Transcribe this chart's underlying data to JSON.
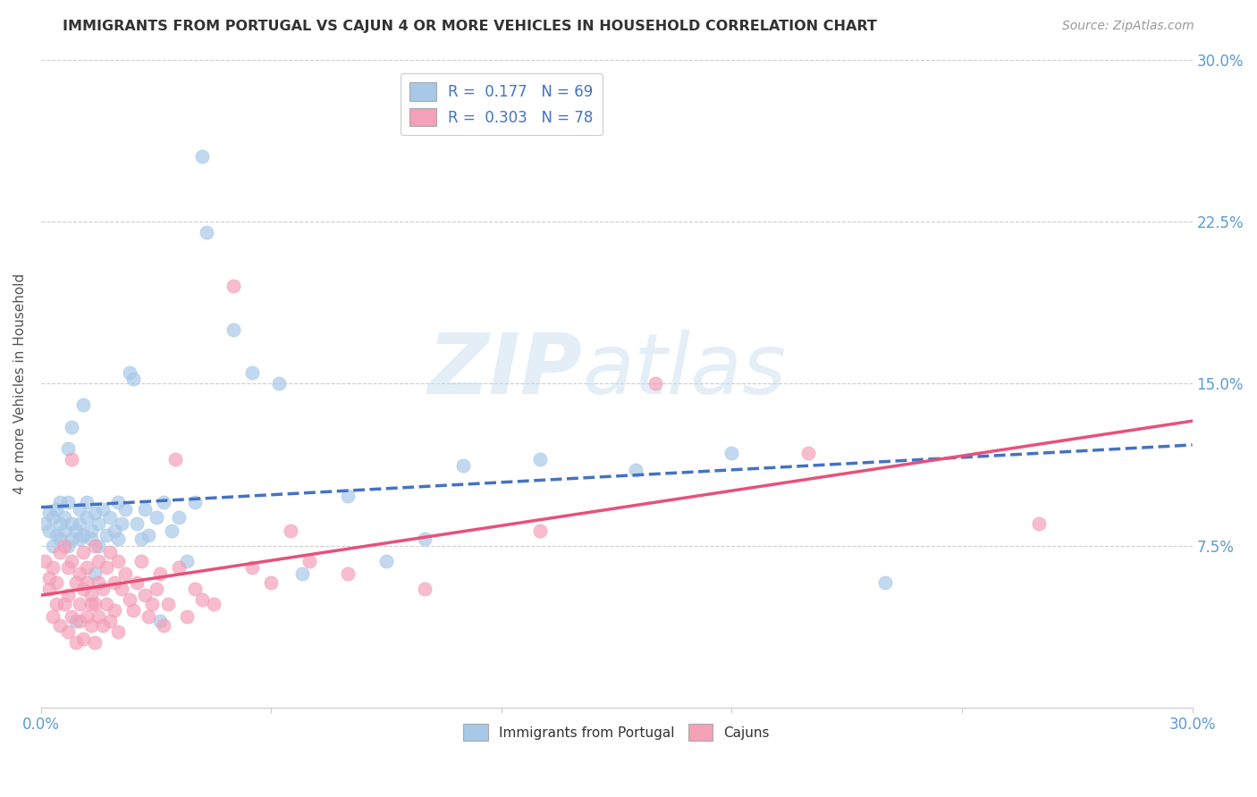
{
  "title": "IMMIGRANTS FROM PORTUGAL VS CAJUN 4 OR MORE VEHICLES IN HOUSEHOLD CORRELATION CHART",
  "source": "Source: ZipAtlas.com",
  "ylabel": "4 or more Vehicles in Household",
  "xlim": [
    0.0,
    0.3
  ],
  "ylim": [
    0.0,
    0.3
  ],
  "yticks": [
    0.0,
    0.075,
    0.15,
    0.225,
    0.3
  ],
  "ytick_labels": [
    "",
    "7.5%",
    "15.0%",
    "22.5%",
    "30.0%"
  ],
  "bottom_legend": [
    "Immigrants from Portugal",
    "Cajuns"
  ],
  "portugal_color": "#a8c8e8",
  "cajun_color": "#f4a0b8",
  "portugal_line_color": "#4472c4",
  "cajun_line_color": "#e8507a",
  "portugal_scatter": [
    [
      0.001,
      0.085
    ],
    [
      0.002,
      0.09
    ],
    [
      0.002,
      0.082
    ],
    [
      0.003,
      0.088
    ],
    [
      0.003,
      0.075
    ],
    [
      0.004,
      0.092
    ],
    [
      0.004,
      0.08
    ],
    [
      0.005,
      0.095
    ],
    [
      0.005,
      0.085
    ],
    [
      0.005,
      0.078
    ],
    [
      0.006,
      0.088
    ],
    [
      0.006,
      0.082
    ],
    [
      0.007,
      0.095
    ],
    [
      0.007,
      0.075
    ],
    [
      0.007,
      0.12
    ],
    [
      0.008,
      0.085
    ],
    [
      0.008,
      0.078
    ],
    [
      0.008,
      0.13
    ],
    [
      0.009,
      0.082
    ],
    [
      0.009,
      0.04
    ],
    [
      0.01,
      0.085
    ],
    [
      0.01,
      0.078
    ],
    [
      0.01,
      0.092
    ],
    [
      0.011,
      0.08
    ],
    [
      0.011,
      0.14
    ],
    [
      0.012,
      0.088
    ],
    [
      0.012,
      0.095
    ],
    [
      0.013,
      0.082
    ],
    [
      0.013,
      0.078
    ],
    [
      0.014,
      0.09
    ],
    [
      0.014,
      0.062
    ],
    [
      0.015,
      0.085
    ],
    [
      0.015,
      0.075
    ],
    [
      0.016,
      0.092
    ],
    [
      0.017,
      0.08
    ],
    [
      0.018,
      0.088
    ],
    [
      0.019,
      0.082
    ],
    [
      0.02,
      0.095
    ],
    [
      0.02,
      0.078
    ],
    [
      0.021,
      0.085
    ],
    [
      0.022,
      0.092
    ],
    [
      0.023,
      0.155
    ],
    [
      0.024,
      0.152
    ],
    [
      0.025,
      0.085
    ],
    [
      0.026,
      0.078
    ],
    [
      0.027,
      0.092
    ],
    [
      0.028,
      0.08
    ],
    [
      0.03,
      0.088
    ],
    [
      0.031,
      0.04
    ],
    [
      0.032,
      0.095
    ],
    [
      0.034,
      0.082
    ],
    [
      0.036,
      0.088
    ],
    [
      0.038,
      0.068
    ],
    [
      0.04,
      0.095
    ],
    [
      0.042,
      0.255
    ],
    [
      0.043,
      0.22
    ],
    [
      0.05,
      0.175
    ],
    [
      0.055,
      0.155
    ],
    [
      0.062,
      0.15
    ],
    [
      0.068,
      0.062
    ],
    [
      0.08,
      0.098
    ],
    [
      0.09,
      0.068
    ],
    [
      0.1,
      0.078
    ],
    [
      0.11,
      0.112
    ],
    [
      0.13,
      0.115
    ],
    [
      0.155,
      0.11
    ],
    [
      0.18,
      0.118
    ],
    [
      0.22,
      0.058
    ]
  ],
  "cajun_scatter": [
    [
      0.001,
      0.068
    ],
    [
      0.002,
      0.06
    ],
    [
      0.002,
      0.055
    ],
    [
      0.003,
      0.065
    ],
    [
      0.003,
      0.042
    ],
    [
      0.004,
      0.058
    ],
    [
      0.004,
      0.048
    ],
    [
      0.005,
      0.072
    ],
    [
      0.005,
      0.038
    ],
    [
      0.006,
      0.075
    ],
    [
      0.006,
      0.048
    ],
    [
      0.007,
      0.065
    ],
    [
      0.007,
      0.035
    ],
    [
      0.007,
      0.052
    ],
    [
      0.008,
      0.068
    ],
    [
      0.008,
      0.042
    ],
    [
      0.008,
      0.115
    ],
    [
      0.009,
      0.058
    ],
    [
      0.009,
      0.03
    ],
    [
      0.01,
      0.062
    ],
    [
      0.01,
      0.04
    ],
    [
      0.01,
      0.048
    ],
    [
      0.011,
      0.055
    ],
    [
      0.011,
      0.072
    ],
    [
      0.011,
      0.032
    ],
    [
      0.012,
      0.065
    ],
    [
      0.012,
      0.042
    ],
    [
      0.012,
      0.058
    ],
    [
      0.013,
      0.048
    ],
    [
      0.013,
      0.052
    ],
    [
      0.013,
      0.038
    ],
    [
      0.014,
      0.075
    ],
    [
      0.014,
      0.048
    ],
    [
      0.014,
      0.03
    ],
    [
      0.015,
      0.058
    ],
    [
      0.015,
      0.042
    ],
    [
      0.015,
      0.068
    ],
    [
      0.016,
      0.055
    ],
    [
      0.016,
      0.038
    ],
    [
      0.017,
      0.065
    ],
    [
      0.017,
      0.048
    ],
    [
      0.018,
      0.072
    ],
    [
      0.018,
      0.04
    ],
    [
      0.019,
      0.058
    ],
    [
      0.019,
      0.045
    ],
    [
      0.02,
      0.068
    ],
    [
      0.02,
      0.035
    ],
    [
      0.021,
      0.055
    ],
    [
      0.022,
      0.062
    ],
    [
      0.023,
      0.05
    ],
    [
      0.024,
      0.045
    ],
    [
      0.025,
      0.058
    ],
    [
      0.026,
      0.068
    ],
    [
      0.027,
      0.052
    ],
    [
      0.028,
      0.042
    ],
    [
      0.029,
      0.048
    ],
    [
      0.03,
      0.055
    ],
    [
      0.031,
      0.062
    ],
    [
      0.032,
      0.038
    ],
    [
      0.033,
      0.048
    ],
    [
      0.035,
      0.115
    ],
    [
      0.036,
      0.065
    ],
    [
      0.038,
      0.042
    ],
    [
      0.04,
      0.055
    ],
    [
      0.042,
      0.05
    ],
    [
      0.045,
      0.048
    ],
    [
      0.05,
      0.195
    ],
    [
      0.055,
      0.065
    ],
    [
      0.06,
      0.058
    ],
    [
      0.065,
      0.082
    ],
    [
      0.07,
      0.068
    ],
    [
      0.08,
      0.062
    ],
    [
      0.1,
      0.055
    ],
    [
      0.13,
      0.082
    ],
    [
      0.16,
      0.15
    ],
    [
      0.2,
      0.118
    ],
    [
      0.26,
      0.085
    ]
  ],
  "watermark_top": "ZIP",
  "watermark_bottom": "atlas",
  "background_color": "#ffffff",
  "grid_color": "#cccccc"
}
